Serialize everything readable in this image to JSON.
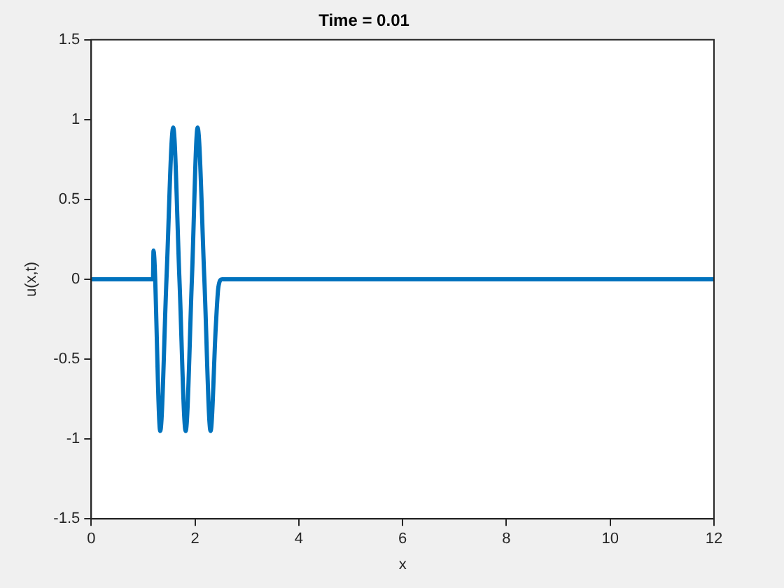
{
  "chart_data": {
    "type": "line",
    "title": "Time = 0.01",
    "xlabel": "x",
    "ylabel": "u(x,t)",
    "series": [
      {
        "color": "#0072bd",
        "x": [
          0,
          1.19,
          1.2,
          1.33,
          1.45,
          1.58,
          1.7,
          1.82,
          1.94,
          2.05,
          2.18,
          2.3,
          2.4,
          2.45,
          2.52,
          12
        ],
        "values": [
          0,
          0,
          0.18,
          -0.95,
          0,
          0.95,
          0,
          -0.95,
          0,
          0.95,
          0,
          -0.95,
          -0.3,
          -0.05,
          0,
          0
        ]
      }
    ],
    "xlim": [
      0,
      12
    ],
    "xticks": [
      0,
      2,
      4,
      6,
      8,
      10,
      12
    ],
    "ylim": [
      -1.5,
      1.5
    ],
    "yticks": [
      -1.5,
      -1,
      -0.5,
      0,
      0.5,
      1,
      1.5
    ],
    "grid": false,
    "legend": false,
    "marker": "none",
    "line_style": "solid"
  }
}
